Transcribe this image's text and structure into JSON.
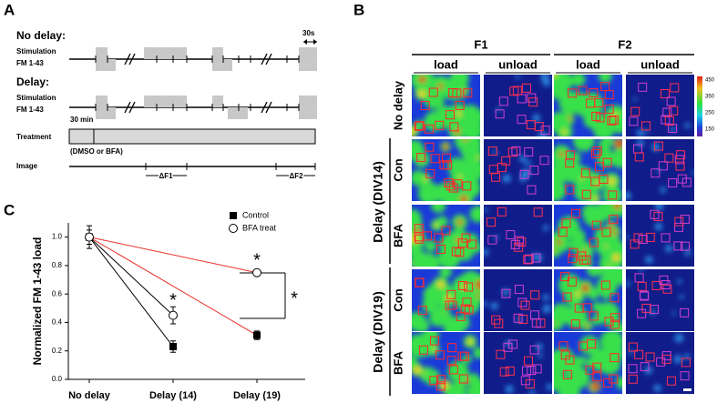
{
  "panel_labels": [
    "A",
    "B",
    "C"
  ],
  "protocol": {
    "no_delay": {
      "title": "No delay:",
      "rows": [
        "Stimulation",
        "FM 1-43"
      ]
    },
    "scale": "30s",
    "delay": {
      "title": "Delay:",
      "rows": [
        "Stimulation",
        "FM 1-43"
      ]
    },
    "wait": "30 min",
    "treatment": {
      "label": "Treatment",
      "note": "(DMSO or BFA)"
    },
    "image": {
      "label": "Image",
      "intervals": [
        "ΔF1",
        "ΔF2"
      ]
    }
  },
  "images": {
    "groups": [
      "F1",
      "F2"
    ],
    "columns": [
      "load",
      "unload",
      "load",
      "unload"
    ],
    "rows": [
      "No delay",
      "Con",
      "BFA",
      "Con",
      "BFA"
    ],
    "row_groups": [
      "Delay (DIV14)",
      "Delay (DIV19)"
    ],
    "colorbar": [
      450,
      350,
      250,
      150
    ]
  },
  "chart_data": {
    "type": "line",
    "y_label": "Normalized FM 1-43 load",
    "categories": [
      "No delay",
      "Delay (14)",
      "Delay (19)"
    ],
    "series": [
      {
        "name": "Control",
        "marker": "square",
        "color": "#000000",
        "values": [
          1.0,
          0.23,
          0.31
        ],
        "errors": [
          0.05,
          0.04,
          0.03
        ]
      },
      {
        "name": "BFA treat",
        "marker": "circle",
        "color": "#000000",
        "values": [
          1.0,
          0.45,
          0.75
        ],
        "errors": [
          0.08,
          0.06,
          0.02
        ]
      }
    ],
    "segment_colors": [
      "#000000",
      "#000000",
      "#e8312a"
    ],
    "ylim": [
      0,
      1.1
    ],
    "yticks": [
      {
        "value": 0,
        "label": "0.0"
      },
      0.2,
      0.4,
      0.6,
      0.8,
      {
        "value": 1,
        "label": "1.0"
      }
    ],
    "annotations": [
      "*",
      "*",
      "*"
    ]
  }
}
